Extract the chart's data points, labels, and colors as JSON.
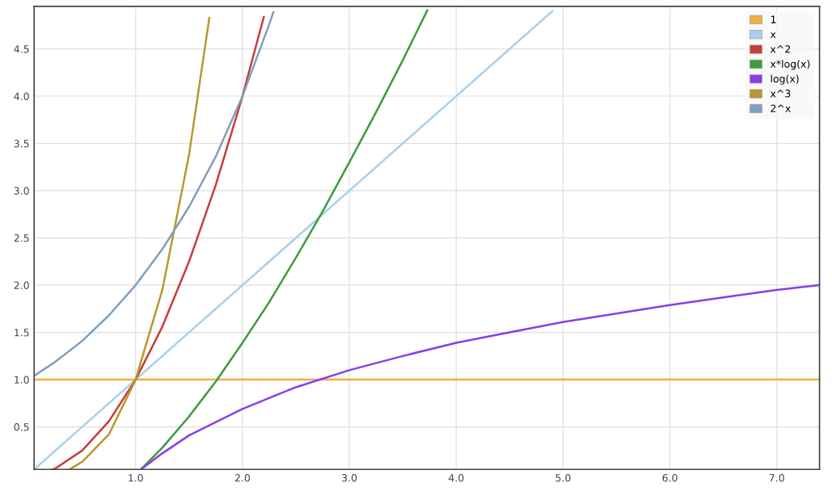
{
  "chart_data": {
    "type": "line",
    "xlim": [
      0.05,
      7.4
    ],
    "ylim": [
      0.05,
      4.95
    ],
    "xticks": [
      {
        "value": 1,
        "label": "1.0"
      },
      {
        "value": 2,
        "label": "2.0"
      },
      {
        "value": 3,
        "label": "3.0"
      },
      {
        "value": 4,
        "label": "4.0"
      },
      {
        "value": 5,
        "label": "5.0"
      },
      {
        "value": 6,
        "label": "6.0"
      },
      {
        "value": 7,
        "label": "7.0"
      }
    ],
    "yticks": [
      0.5,
      {
        "value": 1,
        "label": "1.0"
      },
      1.5,
      {
        "value": 2,
        "label": "2.0"
      },
      2.5,
      {
        "value": 3,
        "label": "3.0"
      },
      3.5,
      {
        "value": 4,
        "label": "4.0"
      },
      4.5
    ],
    "grid": true,
    "legend": "top right",
    "marker": "none",
    "line_style": "solid",
    "series": [
      {
        "name": "1",
        "color": "#f0b040",
        "x": [
          0.05,
          7.4
        ],
        "values": [
          1,
          1
        ]
      },
      {
        "name": "x",
        "color": "#a8d0ec",
        "x": [
          0.05,
          4.9
        ],
        "values": [
          0.05,
          4.9
        ]
      },
      {
        "name": "x^2",
        "color": "#c83c3c",
        "x": [
          0.22,
          0.25,
          0.5,
          0.75,
          1,
          1.25,
          1.5,
          1.75,
          2,
          2.2
        ],
        "values": [
          0.05,
          0.06,
          0.25,
          0.56,
          1,
          1.56,
          2.25,
          3.06,
          4,
          4.84
        ]
      },
      {
        "name": "x*log(x)",
        "color": "#3c9c3c",
        "x": [
          1.05,
          1.25,
          1.5,
          1.75,
          2,
          2.25,
          2.5,
          2.75,
          3,
          3.25,
          3.5,
          3.73
        ],
        "values": [
          0.05,
          0.28,
          0.61,
          0.98,
          1.39,
          1.82,
          2.29,
          2.78,
          3.3,
          3.83,
          4.38,
          4.91
        ]
      },
      {
        "name": "log(x)",
        "color": "#8a3ee8",
        "x": [
          1.05,
          1.25,
          1.5,
          2,
          2.5,
          3,
          3.5,
          4,
          4.5,
          5,
          5.5,
          6,
          6.5,
          7,
          7.4
        ],
        "values": [
          0.05,
          0.22,
          0.41,
          0.69,
          0.92,
          1.1,
          1.25,
          1.39,
          1.5,
          1.61,
          1.7,
          1.79,
          1.87,
          1.95,
          2.0
        ]
      },
      {
        "name": "x^3",
        "color": "#b8982c",
        "x": [
          0.38,
          0.5,
          0.75,
          1,
          1.25,
          1.5,
          1.69
        ],
        "values": [
          0.05,
          0.13,
          0.42,
          1,
          1.95,
          3.38,
          4.83
        ]
      },
      {
        "name": "2^x",
        "color": "#7f9fbf",
        "x": [
          0.05,
          0.25,
          0.5,
          0.75,
          1,
          1.25,
          1.5,
          1.75,
          2,
          2.25,
          2.29
        ],
        "values": [
          1.04,
          1.19,
          1.41,
          1.68,
          2,
          2.38,
          2.83,
          3.36,
          4,
          4.76,
          4.89
        ]
      }
    ]
  }
}
